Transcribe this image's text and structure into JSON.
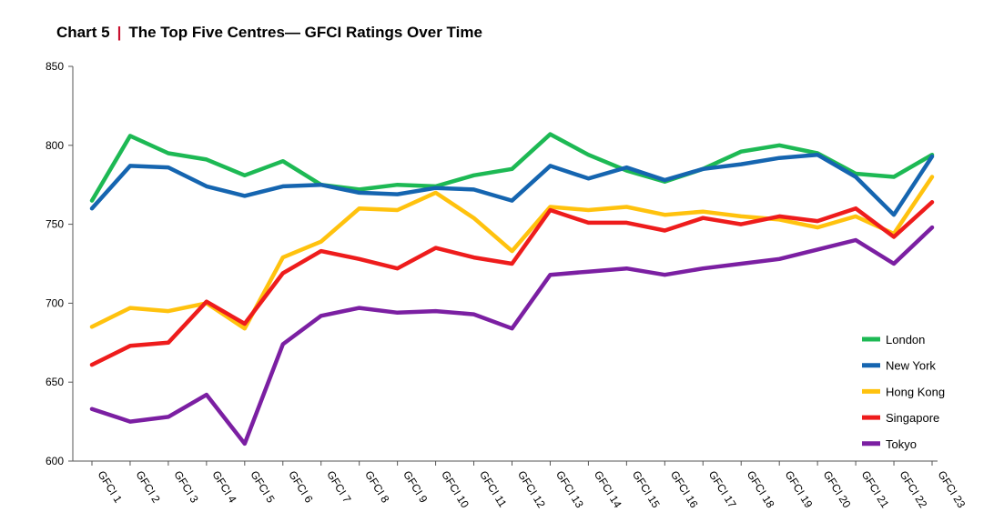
{
  "header": {
    "chart_number": "Chart 5",
    "separator": "|",
    "title": "The Top Five Centres— GFCI Ratings Over Time"
  },
  "chart_data": {
    "type": "line",
    "title": "The Top Five Centres— GFCI Ratings Over Time",
    "xlabel": "",
    "ylabel": "",
    "ylim": [
      600,
      850
    ],
    "yticks": [
      600,
      650,
      700,
      750,
      800,
      850
    ],
    "grid": false,
    "legend_position": "bottom-right",
    "categories": [
      "GFCI 1",
      "GFCI 2",
      "GFCI 3",
      "GFCI 4",
      "GFCI 5",
      "GFCI 6",
      "GFCI 7",
      "GFCI 8",
      "GFCI 9",
      "GFCI 10",
      "GFCI 11",
      "GFCI 12",
      "GFCI 13",
      "GFCI 14",
      "GFCI 15",
      "GFCI 16",
      "GFCI 17",
      "GFCI 18",
      "GFCI 19",
      "GFCI 20",
      "GFCI 21",
      "GFCI 22",
      "GFCI 23"
    ],
    "series": [
      {
        "name": "London",
        "color": "#1db954",
        "values": [
          765,
          806,
          795,
          791,
          781,
          790,
          775,
          772,
          775,
          774,
          781,
          785,
          807,
          794,
          784,
          777,
          785,
          796,
          800,
          795,
          782,
          780,
          794
        ]
      },
      {
        "name": "New York",
        "color": "#1565b0",
        "values": [
          760,
          787,
          786,
          774,
          768,
          774,
          775,
          770,
          769,
          773,
          772,
          765,
          787,
          779,
          786,
          778,
          785,
          788,
          792,
          794,
          780,
          756,
          793
        ]
      },
      {
        "name": "Hong Kong",
        "color": "#ffc20e",
        "values": [
          685,
          697,
          695,
          700,
          684,
          729,
          739,
          760,
          759,
          770,
          754,
          733,
          761,
          759,
          761,
          756,
          758,
          755,
          753,
          748,
          755,
          744,
          780
        ]
      },
      {
        "name": "Singapore",
        "color": "#ee1c1c",
        "values": [
          661,
          673,
          675,
          701,
          687,
          719,
          733,
          728,
          722,
          735,
          729,
          725,
          759,
          751,
          751,
          746,
          754,
          750,
          755,
          752,
          760,
          742,
          764
        ]
      },
      {
        "name": "Tokyo",
        "color": "#7b1fa2",
        "values": [
          633,
          625,
          628,
          642,
          611,
          674,
          692,
          697,
          694,
          695,
          693,
          684,
          718,
          720,
          722,
          718,
          722,
          725,
          728,
          734,
          740,
          725,
          748
        ]
      }
    ]
  }
}
